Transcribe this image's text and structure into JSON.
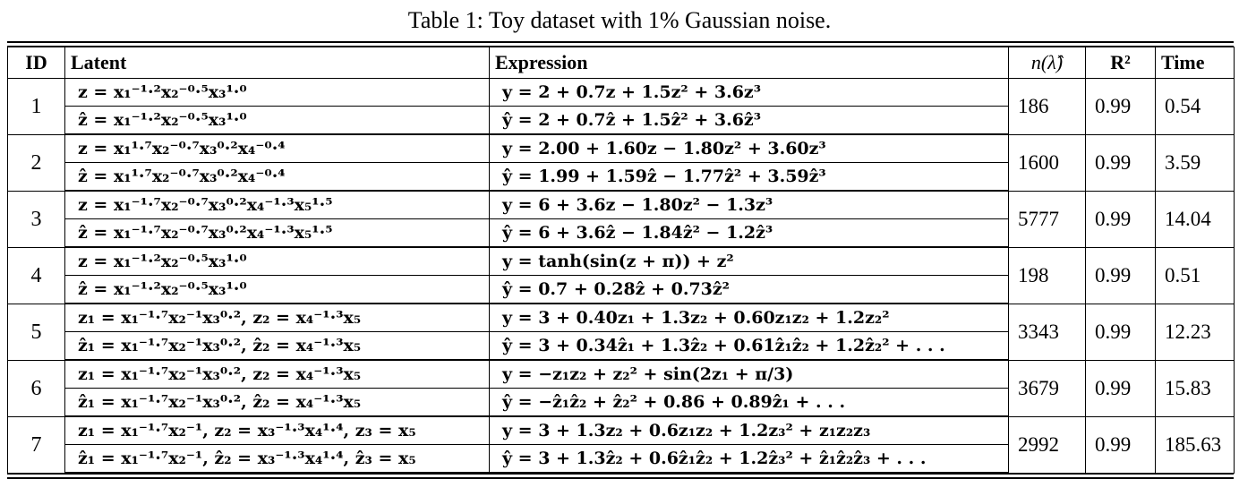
{
  "caption": "Table 1: Toy dataset with 1% Gaussian noise.",
  "headers": {
    "id": "ID",
    "latent": "Latent",
    "expression": "Expression",
    "n": "n(λ̂)",
    "r2": "R²",
    "time": "Time"
  },
  "rows": [
    {
      "id": "1",
      "latent": "z = x₁⁻¹·²x₂⁻⁰·⁵x₃¹·⁰",
      "latent_hat": "ẑ = x₁⁻¹·²x₂⁻⁰·⁵x₃¹·⁰",
      "expr": "y = 2 + 0.7z + 1.5z² + 3.6z³",
      "expr_hat": "ŷ = 2 + 0.7ẑ + 1.5ẑ² + 3.6ẑ³",
      "n": "186",
      "r2": "0.99",
      "time": "0.54"
    },
    {
      "id": "2",
      "latent": "z = x₁¹·⁷x₂⁻⁰·⁷x₃⁰·²x₄⁻⁰·⁴",
      "latent_hat": "ẑ = x₁¹·⁷x₂⁻⁰·⁷x₃⁰·²x₄⁻⁰·⁴",
      "expr": "y = 2.00 + 1.60z − 1.80z² + 3.60z³",
      "expr_hat": "ŷ = 1.99 + 1.59ẑ − 1.77ẑ² + 3.59ẑ³",
      "n": "1600",
      "r2": "0.99",
      "time": "3.59"
    },
    {
      "id": "3",
      "latent": "z = x₁⁻¹·⁷x₂⁻⁰·⁷x₃⁰·²x₄⁻¹·³x₅¹·⁵",
      "latent_hat": "ẑ = x₁⁻¹·⁷x₂⁻⁰·⁷x₃⁰·²x₄⁻¹·³x₅¹·⁵",
      "expr": "y = 6 + 3.6z − 1.80z² − 1.3z³",
      "expr_hat": "ŷ = 6 + 3.6ẑ − 1.84ẑ² − 1.2ẑ³",
      "n": "5777",
      "r2": "0.99",
      "time": "14.04"
    },
    {
      "id": "4",
      "latent": "z = x₁⁻¹·²x₂⁻⁰·⁵x₃¹·⁰",
      "latent_hat": "ẑ = x₁⁻¹·²x₂⁻⁰·⁵x₃¹·⁰",
      "expr": "y = tanh(sin(z + π)) + z²",
      "expr_hat": "ŷ = 0.7 + 0.28ẑ + 0.73ẑ²",
      "n": "198",
      "r2": "0.99",
      "time": "0.51"
    },
    {
      "id": "5",
      "latent": "z₁ = x₁⁻¹·⁷x₂⁻¹x₃⁰·², z₂ = x₄⁻¹·³x₅",
      "latent_hat": "ẑ₁ = x₁⁻¹·⁷x₂⁻¹x₃⁰·², ẑ₂ = x₄⁻¹·³x₅",
      "expr": "y = 3 + 0.40z₁ + 1.3z₂ + 0.60z₁z₂ + 1.2z₂²",
      "expr_hat": "ŷ = 3 + 0.34ẑ₁ + 1.3ẑ₂ + 0.61ẑ₁ẑ₂ + 1.2ẑ₂² + . . .",
      "n": "3343",
      "r2": "0.99",
      "time": "12.23"
    },
    {
      "id": "6",
      "latent": "z₁ = x₁⁻¹·⁷x₂⁻¹x₃⁰·², z₂ = x₄⁻¹·³x₅",
      "latent_hat": "ẑ₁ = x₁⁻¹·⁷x₂⁻¹x₃⁰·², ẑ₂ = x₄⁻¹·³x₅",
      "expr": "y = −z₁z₂ + z₂² + sin(2z₁ + π/3)",
      "expr_hat": "ŷ = −ẑ₁ẑ₂ + ẑ₂² + 0.86 + 0.89ẑ₁ + . . .",
      "n": "3679",
      "r2": "0.99",
      "time": "15.83"
    },
    {
      "id": "7",
      "latent": "z₁ = x₁⁻¹·⁷x₂⁻¹, z₂ = x₃⁻¹·³x₄¹·⁴, z₃ = x₅",
      "latent_hat": "ẑ₁ = x₁⁻¹·⁷x₂⁻¹, ẑ₂ = x₃⁻¹·³x₄¹·⁴, ẑ₃ = x₅",
      "expr": "y = 3 + 1.3z₂ + 0.6z₁z₂ + 1.2z₃² + z₁z₂z₃",
      "expr_hat": "ŷ = 3 + 1.3ẑ₂ + 0.6ẑ₁ẑ₂ + 1.2ẑ₃² + ẑ₁ẑ₂ẑ₃ + . . .",
      "n": "2992",
      "r2": "0.99",
      "time": "185.63"
    }
  ]
}
